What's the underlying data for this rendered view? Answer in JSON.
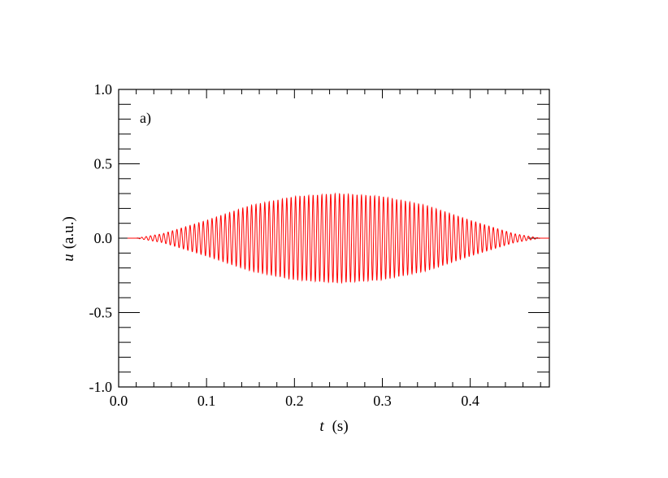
{
  "chart_data": {
    "type": "line",
    "panel_label": "a)",
    "xlabel_var": "t",
    "xlabel_unit": "(s)",
    "ylabel_var": "u",
    "ylabel_unit": "(a.u.)",
    "xlim": [
      0.0,
      0.49
    ],
    "ylim": [
      -1.0,
      1.0
    ],
    "x_ticks": [
      "0.0",
      "0.1",
      "0.2",
      "0.3",
      "0.4"
    ],
    "y_ticks": [
      "1.0",
      "0.5",
      "0.0",
      "-0.5",
      "-1.0"
    ],
    "grid": false,
    "series": [
      {
        "color": "#ff0000",
        "signal": "gaussian-windowed sinusoid",
        "envelope_peak": 0.3,
        "center_time": 0.25,
        "carrier_frequency_hz": 200,
        "t_start": 0.01,
        "t_end": 0.49,
        "envelope_samples": {
          "t": [
            0.02,
            0.05,
            0.1,
            0.15,
            0.2,
            0.25,
            0.3,
            0.35,
            0.4,
            0.45,
            0.48
          ],
          "amplitude": [
            0.0,
            0.03,
            0.12,
            0.22,
            0.28,
            0.3,
            0.28,
            0.22,
            0.12,
            0.03,
            0.0
          ]
        }
      }
    ]
  }
}
